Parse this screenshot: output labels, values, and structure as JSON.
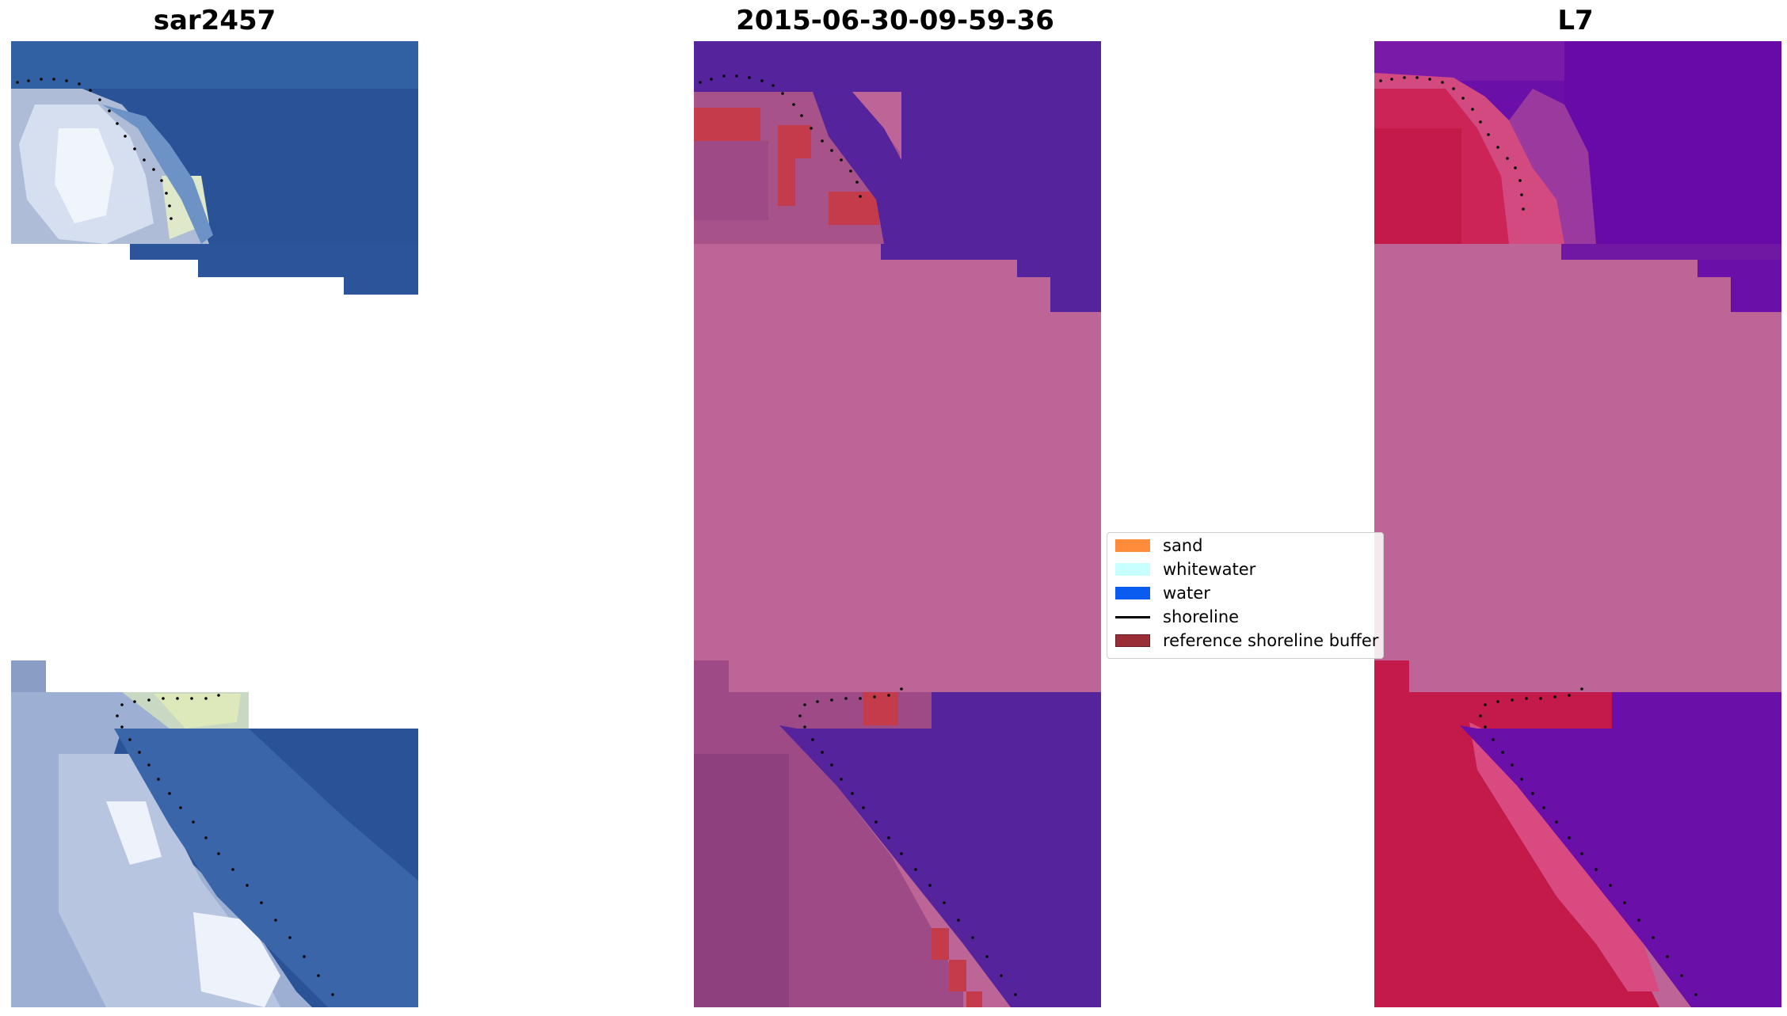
{
  "figure": {
    "panels": [
      {
        "id": "rgb",
        "title": "sar2457"
      },
      {
        "id": "classified",
        "title": "2015-06-30-09-59-36"
      },
      {
        "id": "index",
        "title": "L7"
      }
    ]
  },
  "legend": {
    "items": [
      {
        "label": "sand",
        "color": "#ff8c3a",
        "kind": "patch"
      },
      {
        "label": "whitewater",
        "color": "#c8ffff",
        "kind": "patch"
      },
      {
        "label": "water",
        "color": "#0a5cf0",
        "kind": "patch"
      },
      {
        "label": "shoreline",
        "color": "#000000",
        "kind": "line"
      },
      {
        "label": "reference shoreline buffer",
        "color": "#9a2e36",
        "kind": "patch"
      }
    ]
  },
  "colors": {
    "nodata_fill": "#bd6596",
    "water_class_fill": "#55249c",
    "shoreline_dots": "#000000"
  }
}
